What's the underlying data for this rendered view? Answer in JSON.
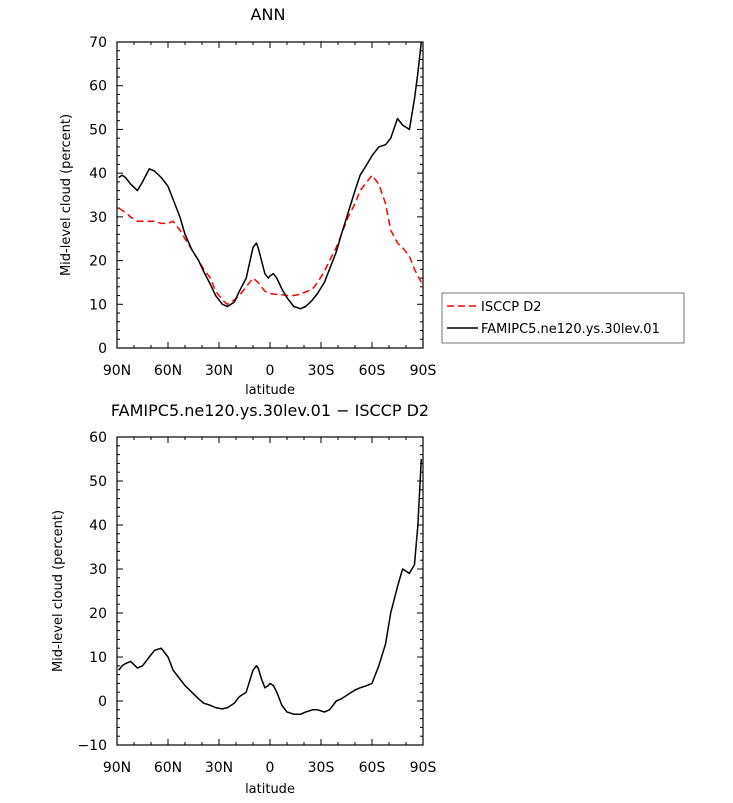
{
  "chart_data": [
    {
      "type": "line",
      "title": "ANN",
      "xlabel": "latitude",
      "ylabel": "Mid-level cloud (percent)",
      "xlim": [
        90,
        -90
      ],
      "ylim": [
        0,
        70
      ],
      "x_ticks": [
        90,
        60,
        30,
        0,
        -30,
        -60,
        -90
      ],
      "x_tick_labels": [
        "90N",
        "60N",
        "30N",
        "0",
        "30S",
        "60S",
        "90S"
      ],
      "y_ticks": [
        0,
        10,
        20,
        30,
        40,
        50,
        60,
        70
      ],
      "y_tick_labels": [
        "0",
        "10",
        "20",
        "30",
        "40",
        "50",
        "60",
        "70"
      ],
      "legend_position": "right",
      "series": [
        {
          "name": "ISCCP D2",
          "color": "#ff0000",
          "style": "dashed",
          "x": [
            89,
            85,
            82,
            78,
            75,
            71,
            68,
            64,
            60,
            57,
            53,
            50,
            46,
            42,
            39,
            35,
            32,
            28,
            25,
            21,
            18,
            14,
            10,
            7,
            3,
            0,
            -3,
            -7,
            -10,
            -14,
            -18,
            -21,
            -25,
            -28,
            -32,
            -35,
            -39,
            -42,
            -46,
            -50,
            -53,
            -57,
            -60,
            -64,
            -68,
            -71,
            -75,
            -78,
            -82,
            -85,
            -89
          ],
          "y": [
            32,
            31,
            30,
            29,
            29,
            29,
            29,
            28.5,
            28.5,
            29,
            27,
            25,
            22.5,
            20,
            18,
            16,
            13,
            11,
            10,
            11,
            12,
            14,
            16,
            15,
            13,
            12.5,
            12.3,
            12.2,
            12,
            12,
            12.3,
            12.8,
            13.5,
            15,
            17.5,
            20,
            23,
            26,
            30,
            33,
            36,
            38,
            39.5,
            37.5,
            33,
            27,
            24,
            23,
            21,
            18,
            15
          ]
        },
        {
          "name": "FAMIPC5.ne120.ys.30lev.01",
          "color": "#000000",
          "style": "solid",
          "x": [
            89,
            87,
            85,
            82,
            78,
            75,
            71,
            68,
            64,
            60,
            57,
            53,
            50,
            46,
            42,
            39,
            35,
            32,
            28,
            25,
            21,
            18,
            14,
            10,
            8,
            7,
            5,
            3,
            1,
            0,
            -2,
            -4,
            -7,
            -10,
            -14,
            -18,
            -21,
            -25,
            -28,
            -32,
            -35,
            -39,
            -42,
            -46,
            -50,
            -53,
            -57,
            -60,
            -64,
            -68,
            -71,
            -75,
            -78,
            -82,
            -85,
            -87,
            -89
          ],
          "y": [
            39,
            39.5,
            39,
            37.5,
            36,
            38,
            41,
            40.5,
            39,
            37,
            34,
            30,
            26,
            22.5,
            20,
            17.5,
            14.5,
            12,
            10,
            9.5,
            10.5,
            13,
            16,
            23,
            24,
            23,
            20,
            17,
            16,
            16.5,
            17,
            16,
            13.5,
            11.5,
            9.5,
            9,
            9.5,
            11,
            12.5,
            15,
            18,
            22,
            26,
            31,
            36,
            39.5,
            42,
            44,
            46,
            46.5,
            48,
            52.5,
            51,
            50,
            57,
            63,
            70
          ]
        }
      ]
    },
    {
      "type": "line",
      "title": "FAMIPC5.ne120.ys.30lev.01 − ISCCP D2",
      "xlabel": "latitude",
      "ylabel": "Mid-level cloud (percent)",
      "xlim": [
        90,
        -90
      ],
      "ylim": [
        -10,
        60
      ],
      "x_ticks": [
        90,
        60,
        30,
        0,
        -30,
        -60,
        -90
      ],
      "x_tick_labels": [
        "90N",
        "60N",
        "30N",
        "0",
        "30S",
        "60S",
        "90S"
      ],
      "y_ticks": [
        -10,
        0,
        10,
        20,
        30,
        40,
        50,
        60
      ],
      "y_tick_labels": [
        "−10",
        "0",
        "10",
        "20",
        "30",
        "40",
        "50",
        "60"
      ],
      "series": [
        {
          "name": "FAMIPC5.ne120.ys.30lev.01 − ISCCP D2",
          "color": "#000000",
          "style": "solid",
          "x": [
            89,
            87,
            85,
            82,
            78,
            75,
            71,
            68,
            64,
            60,
            57,
            53,
            50,
            46,
            42,
            39,
            35,
            32,
            28,
            25,
            21,
            18,
            14,
            10,
            8,
            7,
            5,
            3,
            1,
            0,
            -2,
            -4,
            -7,
            -10,
            -14,
            -18,
            -21,
            -25,
            -28,
            -32,
            -35,
            -39,
            -42,
            -46,
            -50,
            -53,
            -57,
            -60,
            -64,
            -68,
            -71,
            -75,
            -78,
            -82,
            -85,
            -87,
            -89
          ],
          "y": [
            7,
            8,
            8.5,
            9,
            7.5,
            8,
            10,
            11.5,
            12,
            10,
            7,
            5,
            3.5,
            2,
            0.5,
            -0.5,
            -1,
            -1.5,
            -1.8,
            -1.5,
            -0.5,
            1,
            2,
            7,
            8,
            7.5,
            5,
            3,
            3.5,
            4,
            3.5,
            2,
            -1,
            -2.5,
            -3,
            -3,
            -2.5,
            -2,
            -2,
            -2.5,
            -2,
            0,
            0.5,
            1.5,
            2.5,
            3,
            3.5,
            4,
            8,
            13,
            20,
            26,
            30,
            29,
            31,
            40,
            55
          ]
        }
      ]
    }
  ]
}
